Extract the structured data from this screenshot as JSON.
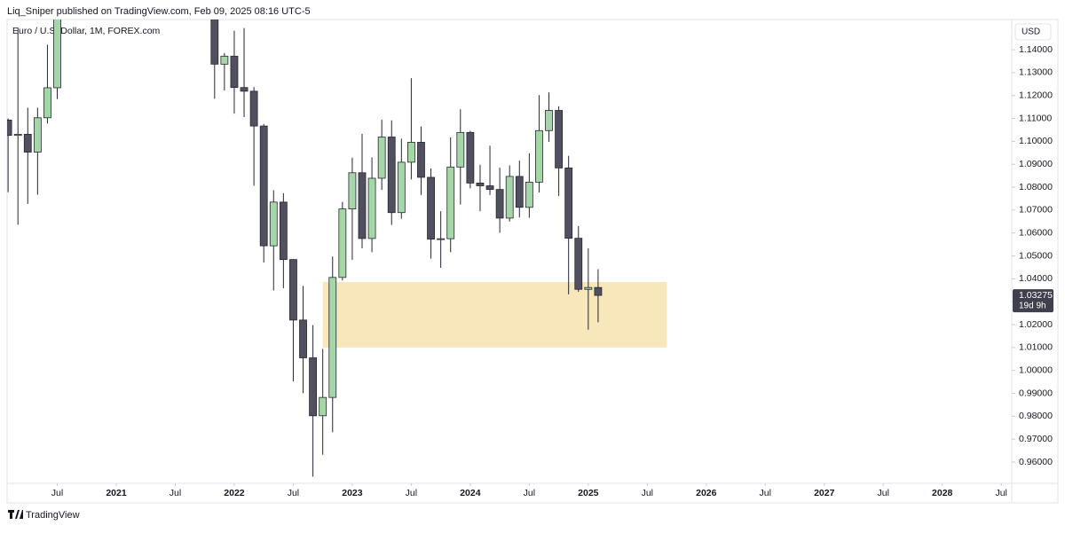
{
  "header": {
    "published": "Liq_Sniper published on TradingView.com, Feb 09, 2025 08:16 UTC-5",
    "footer": "TradingView"
  },
  "chart_data": {
    "type": "candlestick",
    "title": "Euro / U.S. Dollar, 1M, FOREX.com",
    "currency": "USD",
    "dates": [
      "2020-02",
      "2020-03",
      "2020-04",
      "2020-05",
      "2020-06",
      "2020-07",
      "2021-11",
      "2021-12",
      "2022-01",
      "2022-02",
      "2022-03",
      "2022-04",
      "2022-05",
      "2022-06",
      "2022-07",
      "2022-08",
      "2022-09",
      "2022-10",
      "2022-11",
      "2022-12",
      "2023-01",
      "2023-02",
      "2023-03",
      "2023-04",
      "2023-05",
      "2023-06",
      "2023-07",
      "2023-08",
      "2023-09",
      "2023-10",
      "2023-11",
      "2023-12",
      "2024-01",
      "2024-02",
      "2024-03",
      "2024-04",
      "2024-05",
      "2024-06",
      "2024-07",
      "2024-08",
      "2024-09",
      "2024-10",
      "2024-11",
      "2024-12",
      "2025-01",
      "2025-02"
    ],
    "open": [
      1.1093,
      1.1026,
      1.1031,
      1.0953,
      1.1103,
      1.1234,
      1.1558,
      1.1337,
      1.1372,
      1.1235,
      1.1219,
      1.1067,
      1.0544,
      1.0735,
      1.0484,
      1.022,
      1.0055,
      0.9802,
      0.9882,
      1.0406,
      1.0705,
      1.0863,
      1.0576,
      1.0839,
      1.1019,
      1.0689,
      1.0909,
      1.0996,
      1.0843,
      1.0573,
      1.0575,
      1.0888,
      1.1039,
      1.0818,
      1.0806,
      1.079,
      1.0665,
      1.0847,
      1.0712,
      1.0822,
      1.1047,
      1.1135,
      1.0884,
      1.0577,
      1.0354,
      1.0362
    ],
    "high": [
      1.11,
      1.1496,
      1.1147,
      1.1147,
      1.1422,
      1.1908,
      1.1616,
      1.1386,
      1.1483,
      1.1495,
      1.1237,
      1.1076,
      1.0787,
      1.0774,
      1.0486,
      1.0369,
      1.0198,
      1.0094,
      1.0497,
      1.0736,
      1.0929,
      1.1033,
      1.093,
      1.1095,
      1.1092,
      1.1012,
      1.1276,
      1.1065,
      1.0882,
      1.0695,
      1.1017,
      1.114,
      1.1046,
      1.0898,
      1.0981,
      1.0885,
      1.0895,
      1.0916,
      1.0948,
      1.1202,
      1.1214,
      1.1153,
      1.0937,
      1.063,
      1.0533,
      1.0442
    ],
    "low": [
      1.0778,
      1.0636,
      1.0727,
      1.0767,
      1.1078,
      1.1185,
      1.1186,
      1.1222,
      1.1121,
      1.1106,
      1.0806,
      1.0471,
      1.0349,
      1.0359,
      0.9952,
      0.9901,
      0.9536,
      0.9632,
      0.973,
      1.0393,
      1.0483,
      1.0533,
      1.0516,
      1.0788,
      1.0635,
      1.0662,
      1.0834,
      1.0766,
      1.0488,
      1.0448,
      1.0516,
      1.0724,
      1.0795,
      1.0695,
      1.0766,
      1.0601,
      1.065,
      1.0668,
      1.0666,
      1.0777,
      1.0998,
      1.0761,
      1.0332,
      1.0343,
      1.0178,
      1.021
    ],
    "close": [
      1.1026,
      1.1031,
      1.0953,
      1.1103,
      1.1234,
      1.1778,
      1.1337,
      1.1372,
      1.1235,
      1.1219,
      1.1067,
      1.0544,
      1.0735,
      1.0484,
      1.022,
      1.0055,
      0.9802,
      0.9882,
      1.0406,
      1.0705,
      1.0863,
      1.0576,
      1.0839,
      1.1019,
      1.0689,
      1.0909,
      1.0996,
      1.0843,
      1.0573,
      1.0575,
      1.0888,
      1.1039,
      1.0818,
      1.0806,
      1.079,
      1.0665,
      1.0847,
      1.0712,
      1.0822,
      1.1047,
      1.1135,
      1.0884,
      1.0577,
      1.0354,
      1.0362,
      1.03275
    ],
    "up_color": "#a5d6a7",
    "down_color": "#50505e",
    "wick_color": "#262632",
    "countdown": "19d 9h",
    "zone": {
      "x": [
        "2022-10",
        "2025-09"
      ],
      "y": [
        1.01,
        1.0386
      ],
      "color": "#f7e7bb"
    },
    "ylim": [
      0.9507,
      1.1532
    ],
    "yticks": [
      {
        "value": 0.96,
        "label": "0.96000"
      },
      {
        "value": 0.97,
        "label": "0.97000"
      },
      {
        "value": 0.98,
        "label": "0.98000"
      },
      {
        "value": 0.99,
        "label": "0.99000"
      },
      {
        "value": 1.0,
        "label": "1.00000"
      },
      {
        "value": 1.01,
        "label": "1.01000"
      },
      {
        "value": 1.02,
        "label": "1.02000"
      },
      {
        "value": 1.03,
        "label": "1.03000"
      },
      {
        "value": 1.04,
        "label": "1.04000"
      },
      {
        "value": 1.05,
        "label": "1.05000"
      },
      {
        "value": 1.06,
        "label": "1.06000"
      },
      {
        "value": 1.07,
        "label": "1.07000"
      },
      {
        "value": 1.08,
        "label": "1.08000"
      },
      {
        "value": 1.09,
        "label": "1.09000"
      },
      {
        "value": 1.1,
        "label": "1.10000"
      },
      {
        "value": 1.11,
        "label": "1.11000"
      },
      {
        "value": 1.12,
        "label": "1.12000"
      },
      {
        "value": 1.13,
        "label": "1.13000"
      },
      {
        "value": 1.14,
        "label": "1.14000"
      }
    ],
    "xticks": [
      {
        "value": "2020-07",
        "label": "Jul"
      },
      {
        "value": "2021-01",
        "label": "2021"
      },
      {
        "value": "2021-07",
        "label": "Jul"
      },
      {
        "value": "2022-01",
        "label": "2022"
      },
      {
        "value": "2022-07",
        "label": "Jul"
      },
      {
        "value": "2023-01",
        "label": "2023"
      },
      {
        "value": "2023-07",
        "label": "Jul"
      },
      {
        "value": "2024-01",
        "label": "2024"
      },
      {
        "value": "2024-07",
        "label": "Jul"
      },
      {
        "value": "2025-01",
        "label": "2025"
      },
      {
        "value": "2025-07",
        "label": "Jul"
      },
      {
        "value": "2026-01",
        "label": "2026"
      },
      {
        "value": "2026-07",
        "label": "Jul"
      },
      {
        "value": "2027-01",
        "label": "2027"
      },
      {
        "value": "2027-07",
        "label": "Jul"
      },
      {
        "value": "2028-01",
        "label": "2028"
      },
      {
        "value": "2028-07",
        "label": "Jul"
      }
    ],
    "grid": false
  }
}
